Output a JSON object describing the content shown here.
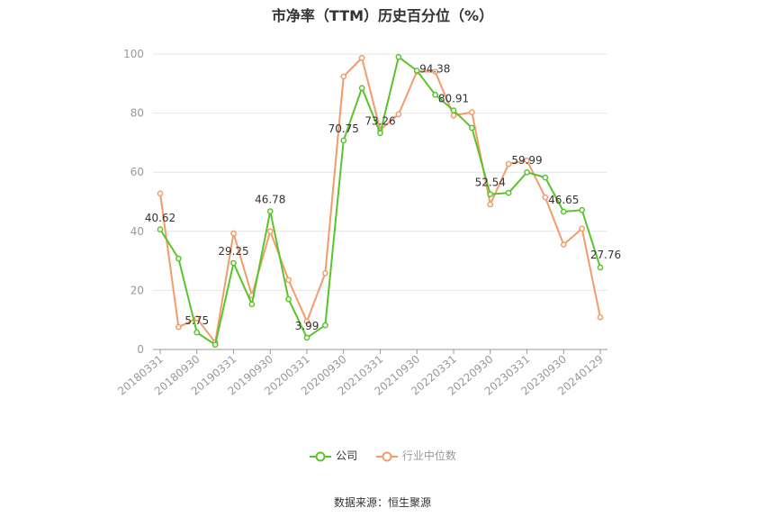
{
  "chart_data": {
    "type": "line",
    "title": "市净率（TTM）历史百分位（%）",
    "source": "数据来源：恒生聚源",
    "ylim": [
      0,
      100
    ],
    "yticks": [
      "0",
      "20",
      "40",
      "60",
      "80",
      "100"
    ],
    "xtick_labels": [
      "20180331",
      "20180930",
      "20190331",
      "20190930",
      "20200331",
      "20200930",
      "20210331",
      "20210930",
      "20220331",
      "20220930",
      "20230331",
      "20230930",
      "20240129"
    ],
    "x": [
      "20180331",
      "20180630",
      "20180930",
      "20181231",
      "20190331",
      "20190630",
      "20190930",
      "20191231",
      "20200331",
      "20200630",
      "20200930",
      "20201231",
      "20210331",
      "20210630",
      "20210930",
      "20211231",
      "20220331",
      "20220630",
      "20220930",
      "20221231",
      "20230331",
      "20230630",
      "20230930",
      "20231231",
      "20240129"
    ],
    "series": [
      {
        "name": "公司",
        "color": "#5ac42d",
        "values": [
          40.62,
          30.8,
          5.75,
          1.6,
          29.25,
          15.3,
          46.78,
          17.0,
          3.99,
          8.2,
          70.75,
          88.5,
          73.26,
          99.0,
          94.38,
          86.2,
          80.91,
          75.0,
          52.54,
          53.0,
          59.99,
          58.2,
          46.65,
          47.2,
          27.76
        ]
      },
      {
        "name": "行业中位数",
        "color": "#f39c6b",
        "values": [
          52.8,
          7.6,
          10.5,
          2.4,
          39.3,
          18.3,
          40.0,
          23.5,
          9.5,
          25.8,
          92.4,
          98.7,
          74.3,
          79.6,
          94.1,
          94.0,
          79.2,
          80.3,
          49.1,
          62.8,
          64.0,
          51.5,
          35.5,
          40.9,
          10.9
        ]
      }
    ],
    "data_labels": [
      {
        "index": 0,
        "text": "40.62"
      },
      {
        "index": 2,
        "text": "5.75"
      },
      {
        "index": 4,
        "text": "29.25"
      },
      {
        "index": 6,
        "text": "46.78"
      },
      {
        "index": 8,
        "text": "3.99"
      },
      {
        "index": 10,
        "text": "70.75"
      },
      {
        "index": 12,
        "text": "73.26"
      },
      {
        "index": 14,
        "text": "94.38"
      },
      {
        "index": 16,
        "text": "80.91"
      },
      {
        "index": 18,
        "text": "52.54"
      },
      {
        "index": 20,
        "text": "59.99"
      },
      {
        "index": 22,
        "text": "46.65"
      },
      {
        "index": 24,
        "text": "27.76"
      }
    ],
    "grid": true,
    "legend_position": "bottom"
  }
}
